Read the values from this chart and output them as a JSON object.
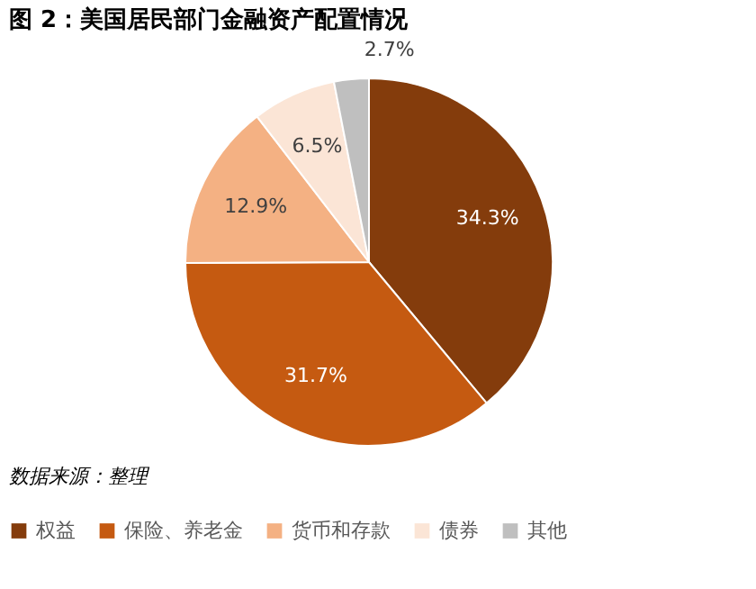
{
  "chart_data": {
    "type": "pie",
    "title": "图 2：美国居民部门金融资产配置情况",
    "categories": [
      "权益",
      "保险、养老金",
      "货币和存款",
      "债券",
      "其他"
    ],
    "values": [
      34.3,
      31.7,
      12.9,
      6.5,
      2.7
    ],
    "colors": [
      "#843c0c",
      "#c55a11",
      "#f4b183",
      "#fbe5d6",
      "#bfbfbf"
    ],
    "value_labels": [
      "34.3%",
      "31.7%",
      "12.9%",
      "6.5%",
      "2.7%"
    ],
    "legend": "bottom",
    "annotations": [
      "数据来源：整理"
    ]
  }
}
